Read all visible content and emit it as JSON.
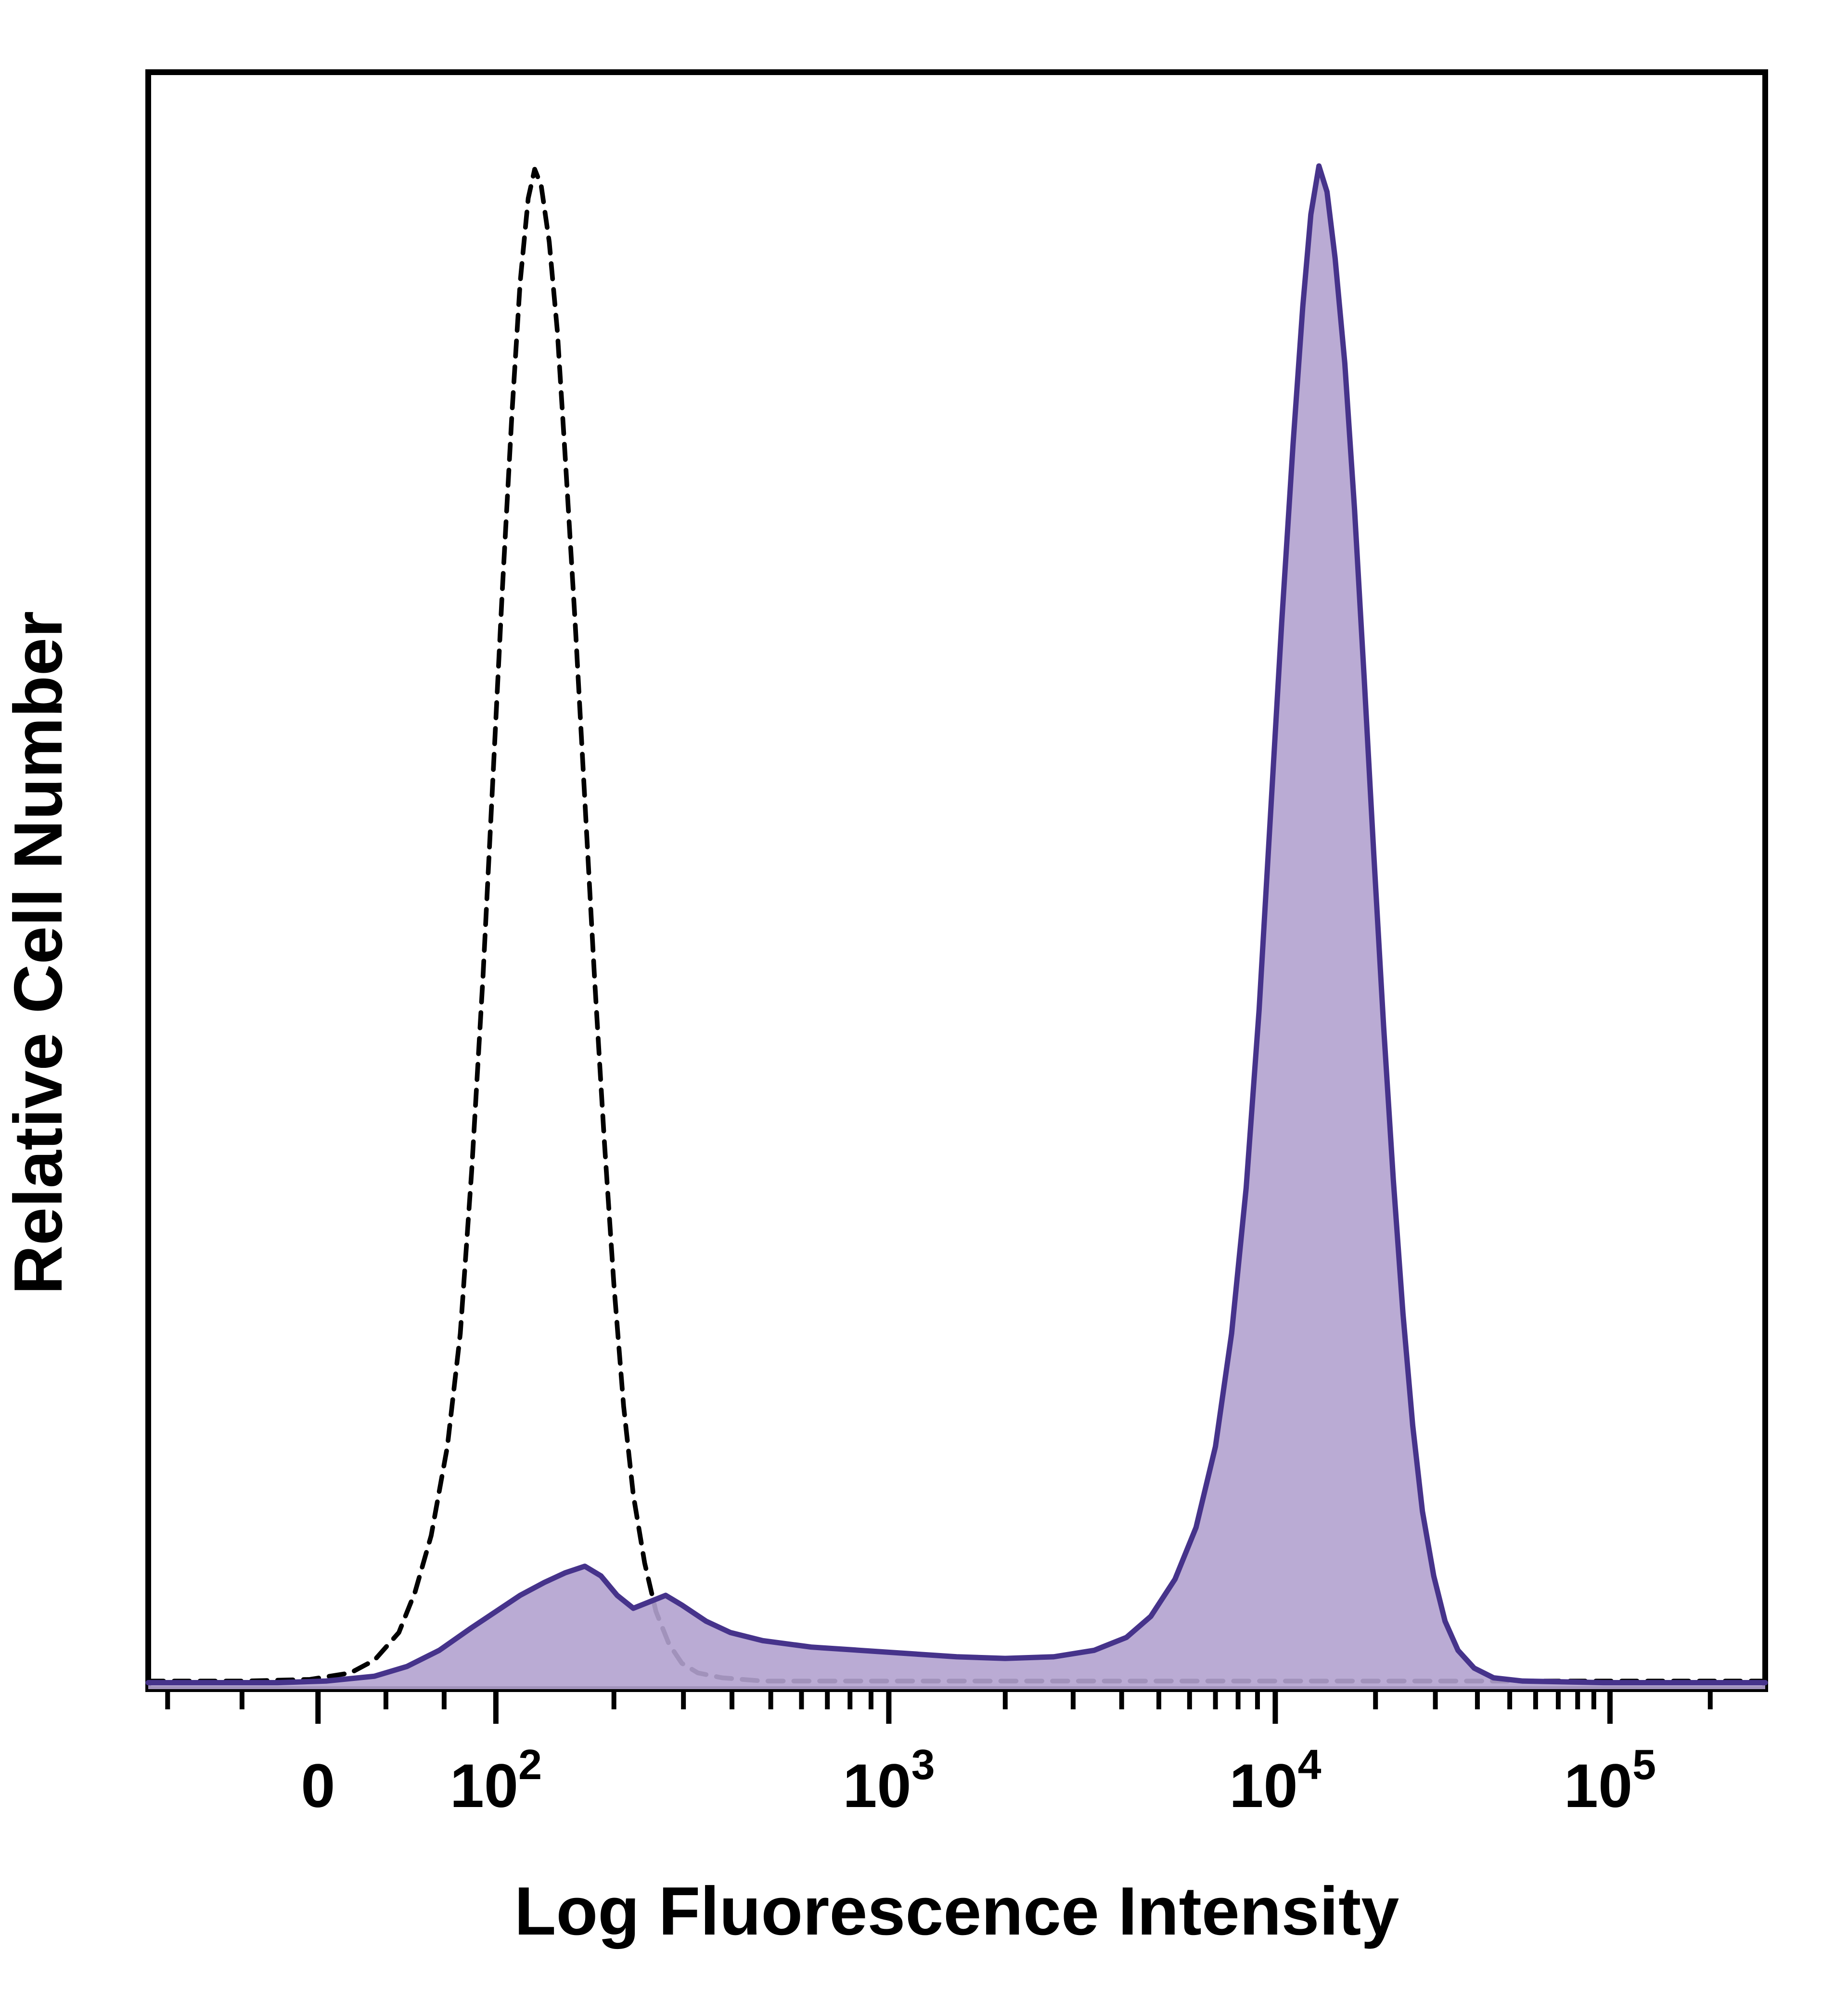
{
  "chart_data": {
    "type": "area",
    "title": "",
    "xlabel": "Log Fluorescence Intensity",
    "ylabel": "Relative Cell Number",
    "legend": "none",
    "grid": false,
    "x_axis": {
      "scale": "biexponential-log (flow cytometry)",
      "major_ticks": [
        {
          "pos": 0.105,
          "label": "0",
          "sup": ""
        },
        {
          "pos": 0.215,
          "label": "10",
          "sup": "2"
        },
        {
          "pos": 0.458,
          "label": "10",
          "sup": "3"
        },
        {
          "pos": 0.697,
          "label": "10",
          "sup": "4"
        },
        {
          "pos": 0.904,
          "label": "10",
          "sup": "5"
        }
      ],
      "minor_ticks": [
        0.012,
        0.058,
        0.147,
        0.183,
        0.288,
        0.331,
        0.361,
        0.385,
        0.404,
        0.42,
        0.434,
        0.447,
        0.53,
        0.572,
        0.602,
        0.625,
        0.644,
        0.66,
        0.674,
        0.686,
        0.759,
        0.796,
        0.822,
        0.842,
        0.858,
        0.872,
        0.884,
        0.894,
        0.966
      ]
    },
    "y_axis": {
      "ticks": "none",
      "range": [
        0,
        1
      ]
    },
    "colors": {
      "axis": "#000000",
      "dashed_curve": "#000000",
      "filled_curve_stroke": "#46338b",
      "filled_curve_fill": "#b2a2cf"
    },
    "series": [
      {
        "name": "dashed_black_histogram",
        "style": "dashed",
        "color": "#000000",
        "fill": "none",
        "peak": {
          "x_pos": 0.239,
          "height": 0.94
        },
        "points": [
          [
            0.0,
            0.005
          ],
          [
            0.06,
            0.005
          ],
          [
            0.1,
            0.006
          ],
          [
            0.125,
            0.01
          ],
          [
            0.14,
            0.018
          ],
          [
            0.155,
            0.035
          ],
          [
            0.165,
            0.06
          ],
          [
            0.175,
            0.095
          ],
          [
            0.185,
            0.15
          ],
          [
            0.193,
            0.22
          ],
          [
            0.2,
            0.32
          ],
          [
            0.207,
            0.44
          ],
          [
            0.213,
            0.56
          ],
          [
            0.219,
            0.68
          ],
          [
            0.225,
            0.79
          ],
          [
            0.23,
            0.87
          ],
          [
            0.235,
            0.922
          ],
          [
            0.239,
            0.94
          ],
          [
            0.243,
            0.93
          ],
          [
            0.248,
            0.895
          ],
          [
            0.253,
            0.84
          ],
          [
            0.258,
            0.76
          ],
          [
            0.264,
            0.66
          ],
          [
            0.27,
            0.55
          ],
          [
            0.276,
            0.44
          ],
          [
            0.282,
            0.34
          ],
          [
            0.288,
            0.25
          ],
          [
            0.294,
            0.175
          ],
          [
            0.3,
            0.12
          ],
          [
            0.307,
            0.078
          ],
          [
            0.314,
            0.048
          ],
          [
            0.322,
            0.028
          ],
          [
            0.33,
            0.016
          ],
          [
            0.34,
            0.01
          ],
          [
            0.355,
            0.007
          ],
          [
            0.38,
            0.005
          ],
          [
            0.45,
            0.005
          ],
          [
            0.6,
            0.005
          ],
          [
            0.8,
            0.005
          ],
          [
            1.0,
            0.005
          ]
        ]
      },
      {
        "name": "filled_purple_histogram",
        "style": "solid",
        "color": "#46338b",
        "fill": "#b2a2cf",
        "fill_opacity": 0.9,
        "peak": {
          "x_pos": 0.724,
          "height": 0.942
        },
        "points": [
          [
            0.0,
            0.004
          ],
          [
            0.08,
            0.004
          ],
          [
            0.11,
            0.005
          ],
          [
            0.14,
            0.008
          ],
          [
            0.16,
            0.014
          ],
          [
            0.18,
            0.024
          ],
          [
            0.2,
            0.038
          ],
          [
            0.215,
            0.048
          ],
          [
            0.23,
            0.058
          ],
          [
            0.245,
            0.066
          ],
          [
            0.258,
            0.072
          ],
          [
            0.27,
            0.076
          ],
          [
            0.28,
            0.07
          ],
          [
            0.29,
            0.058
          ],
          [
            0.3,
            0.05
          ],
          [
            0.31,
            0.054
          ],
          [
            0.32,
            0.058
          ],
          [
            0.33,
            0.052
          ],
          [
            0.345,
            0.042
          ],
          [
            0.36,
            0.035
          ],
          [
            0.38,
            0.03
          ],
          [
            0.41,
            0.026
          ],
          [
            0.44,
            0.024
          ],
          [
            0.47,
            0.022
          ],
          [
            0.5,
            0.02
          ],
          [
            0.53,
            0.019
          ],
          [
            0.56,
            0.02
          ],
          [
            0.585,
            0.024
          ],
          [
            0.605,
            0.032
          ],
          [
            0.62,
            0.045
          ],
          [
            0.635,
            0.068
          ],
          [
            0.648,
            0.1
          ],
          [
            0.66,
            0.15
          ],
          [
            0.67,
            0.22
          ],
          [
            0.679,
            0.31
          ],
          [
            0.687,
            0.42
          ],
          [
            0.694,
            0.54
          ],
          [
            0.701,
            0.66
          ],
          [
            0.708,
            0.77
          ],
          [
            0.714,
            0.855
          ],
          [
            0.719,
            0.912
          ],
          [
            0.724,
            0.942
          ],
          [
            0.729,
            0.926
          ],
          [
            0.734,
            0.885
          ],
          [
            0.74,
            0.82
          ],
          [
            0.746,
            0.73
          ],
          [
            0.752,
            0.625
          ],
          [
            0.758,
            0.515
          ],
          [
            0.764,
            0.41
          ],
          [
            0.77,
            0.315
          ],
          [
            0.776,
            0.232
          ],
          [
            0.782,
            0.163
          ],
          [
            0.788,
            0.11
          ],
          [
            0.795,
            0.07
          ],
          [
            0.802,
            0.042
          ],
          [
            0.81,
            0.024
          ],
          [
            0.82,
            0.013
          ],
          [
            0.832,
            0.007
          ],
          [
            0.85,
            0.005
          ],
          [
            0.9,
            0.004
          ],
          [
            1.0,
            0.004
          ]
        ]
      }
    ]
  }
}
